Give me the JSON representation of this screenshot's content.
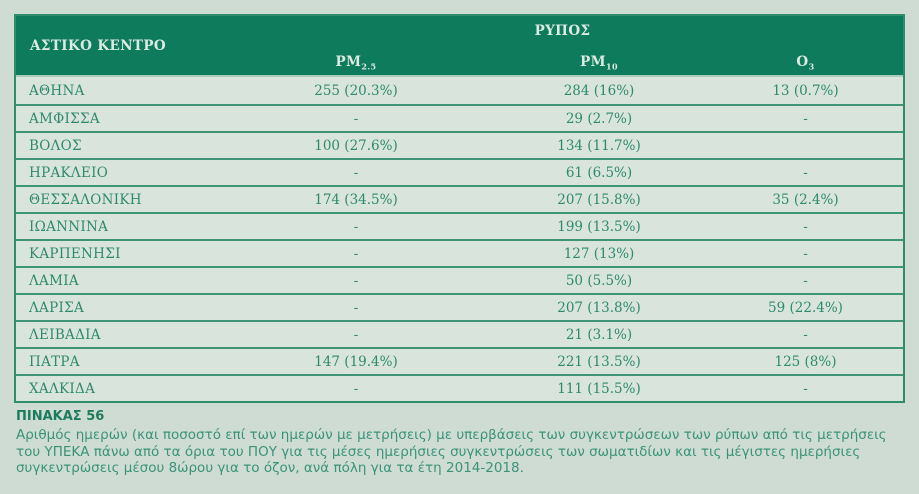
{
  "colors": {
    "page_bg": "#cfdcd3",
    "header_bg": "#0e7b5d",
    "header_text": "#dcebe2",
    "row_bg": "#d9e4dc",
    "row_text": "#2e8a6e",
    "separator": "#3f9478",
    "table_border": "#2f8c6d",
    "caption_title": "#1d7b5e",
    "caption_body": "#3a9379"
  },
  "table": {
    "header": {
      "city_column": "ΑΣΤΙΚΟ ΚΕΝΤΡΟ",
      "group_label": "ΡΥΠΟΣ",
      "pollutants": [
        {
          "base": "PM",
          "sub": "2.5"
        },
        {
          "base": "PM",
          "sub": "10"
        },
        {
          "base": "O",
          "sub": "3"
        }
      ]
    },
    "rows": [
      {
        "city": "ΑΘΗΝΑ",
        "pm25": "255 (20.3%)",
        "pm10": "284 (16%)",
        "o3": "13 (0.7%)"
      },
      {
        "city": "ΑΜΦΙΣΣΑ",
        "pm25": "-",
        "pm10": "29 (2.7%)",
        "o3": "-"
      },
      {
        "city": "ΒΟΛΟΣ",
        "pm25": "100 (27.6%)",
        "pm10": "134 (11.7%)",
        "o3": ""
      },
      {
        "city": "ΗΡΑΚΛΕΙΟ",
        "pm25": "-",
        "pm10": "61 (6.5%)",
        "o3": "-"
      },
      {
        "city": "ΘΕΣΣΑΛΟΝΙΚΗ",
        "pm25": "174 (34.5%)",
        "pm10": "207 (15.8%)",
        "o3": "35 (2.4%)"
      },
      {
        "city": "ΙΩΑΝΝΙΝΑ",
        "pm25": "-",
        "pm10": "199 (13.5%)",
        "o3": "-"
      },
      {
        "city": "ΚΑΡΠΕΝΗΣΙ",
        "pm25": "-",
        "pm10": "127 (13%)",
        "o3": "-"
      },
      {
        "city": "ΛΑΜΙΑ",
        "pm25": "-",
        "pm10": "50 (5.5%)",
        "o3": "-"
      },
      {
        "city": "ΛΑΡΙΣΑ",
        "pm25": "-",
        "pm10": "207 (13.8%)",
        "o3": "59 (22.4%)"
      },
      {
        "city": "ΛΕΙΒΑΔΙΑ",
        "pm25": "-",
        "pm10": "21 (3.1%)",
        "o3": "-"
      },
      {
        "city": "ΠΑΤΡΑ",
        "pm25": "147 (19.4%)",
        "pm10": "221 (13.5%)",
        "o3": "125 (8%)"
      },
      {
        "city": "ΧΑΛΚΙΔΑ",
        "pm25": "-",
        "pm10": "111 (15.5%)",
        "o3": "-"
      }
    ]
  },
  "caption": {
    "title": "ΠΙΝΑΚΑΣ 56",
    "body": "Αριθμός ημερών (και ποσοστό επί των ημερών με μετρήσεις) με υπερβάσεις των συγκεντρώσεων των ρύπων από τις μετρήσεις του ΥΠΕΚΑ πάνω από τα όρια του ΠΟΥ για τις μέσες ημερήσιες συγκεντρώσεις των σωματιδίων και τις μέγιστες ημερήσιες συγκεντρώσεις μέσου 8ώρου για το όζον, ανά πόλη για τα έτη 2014-2018."
  }
}
